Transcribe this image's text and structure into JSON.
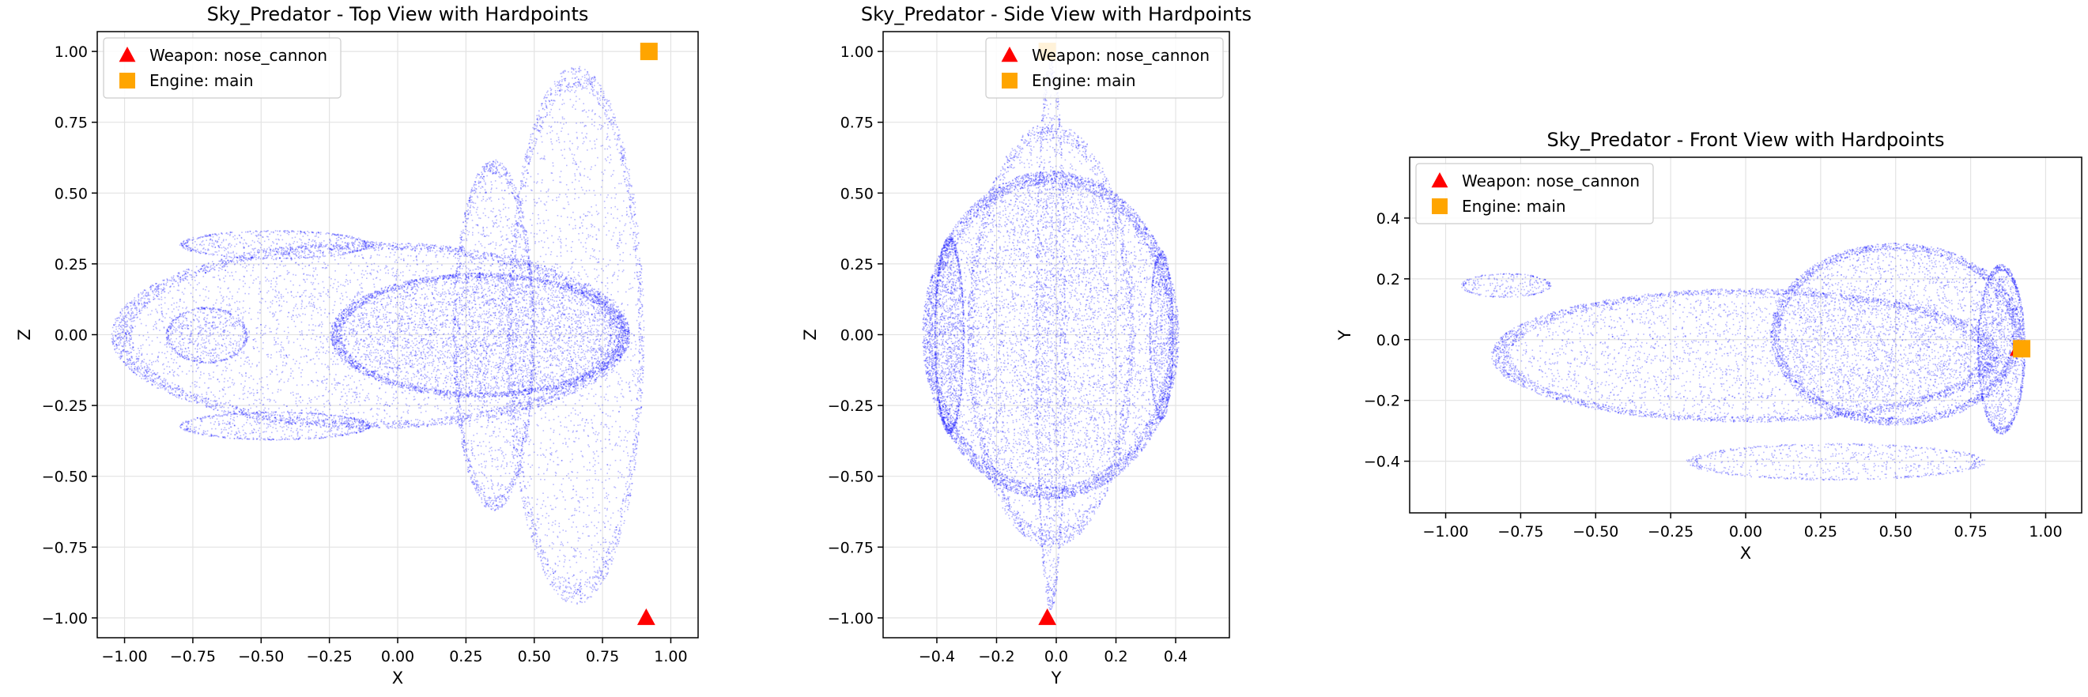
{
  "colors": {
    "points": "#0000ff",
    "weapon": "#ff0000",
    "engine": "#ffa500"
  },
  "chart_data": [
    {
      "type": "scatter",
      "title": "Sky_Predator - Top View with Hardpoints",
      "xlabel": "X",
      "ylabel": "Z",
      "xlim": [
        -1.1,
        1.1
      ],
      "ylim": [
        -1.07,
        1.07
      ],
      "xticks": [
        -1.0,
        -0.75,
        -0.5,
        -0.25,
        0.0,
        0.25,
        0.5,
        0.75,
        1.0
      ],
      "xtick_labels": [
        "−1.00",
        "−0.75",
        "−0.50",
        "−0.25",
        "0.00",
        "0.25",
        "0.50",
        "0.75",
        "1.00"
      ],
      "yticks": [
        -1.0,
        -0.75,
        -0.5,
        -0.25,
        0.0,
        0.25,
        0.5,
        0.75,
        1.0
      ],
      "ytick_labels": [
        "−1.00",
        "−0.75",
        "−0.50",
        "−0.25",
        "0.00",
        "0.25",
        "0.50",
        "0.75",
        "1.00"
      ],
      "grid": true,
      "legend": "upper-left",
      "hardpoints": [
        {
          "name": "Weapon: nose_cannon",
          "marker": "triangle",
          "x": 0.91,
          "y": -1.0
        },
        {
          "name": "Engine: main",
          "marker": "square",
          "x": 0.92,
          "y": 1.0
        }
      ],
      "point_cloud": [
        {
          "shape": "ellipse",
          "cx": -0.1,
          "cy": 0.0,
          "rx": 0.95,
          "ry": 0.33,
          "n": 6000
        },
        {
          "shape": "ellipse",
          "cx": 0.3,
          "cy": 0.0,
          "rx": 0.55,
          "ry": 0.22,
          "n": 4500
        },
        {
          "shape": "ellipse",
          "cx": 0.65,
          "cy": 0.0,
          "rx": 0.25,
          "ry": 0.95,
          "n": 3000
        },
        {
          "shape": "ellipse",
          "cx": 0.35,
          "cy": 0.0,
          "rx": 0.15,
          "ry": 0.62,
          "n": 2000
        },
        {
          "shape": "ellipse",
          "cx": -0.45,
          "cy": 0.32,
          "rx": 0.35,
          "ry": 0.05,
          "n": 700
        },
        {
          "shape": "ellipse",
          "cx": -0.45,
          "cy": -0.32,
          "rx": 0.35,
          "ry": 0.05,
          "n": 700
        },
        {
          "shape": "ellipse",
          "cx": -0.7,
          "cy": 0.0,
          "rx": 0.15,
          "ry": 0.1,
          "n": 600
        }
      ]
    },
    {
      "type": "scatter",
      "title": "Sky_Predator - Side View with Hardpoints",
      "xlabel": "Y",
      "ylabel": "Z",
      "xlim": [
        -0.58,
        0.58
      ],
      "ylim": [
        -1.07,
        1.07
      ],
      "xticks": [
        -0.4,
        -0.2,
        0.0,
        0.2,
        0.4
      ],
      "xtick_labels": [
        "−0.4",
        "−0.2",
        "0.0",
        "0.2",
        "0.4"
      ],
      "yticks": [
        -1.0,
        -0.75,
        -0.5,
        -0.25,
        0.0,
        0.25,
        0.5,
        0.75,
        1.0
      ],
      "ytick_labels": [
        "−1.00",
        "−0.75",
        "−0.50",
        "−0.25",
        "0.00",
        "0.25",
        "0.50",
        "0.75",
        "1.00"
      ],
      "grid": true,
      "legend": "upper-right",
      "hardpoints": [
        {
          "name": "Weapon: nose_cannon",
          "marker": "triangle",
          "x": -0.03,
          "y": -1.0
        },
        {
          "name": "Engine: main",
          "marker": "square",
          "x": -0.03,
          "y": 1.0
        }
      ],
      "point_cloud": [
        {
          "shape": "ellipse",
          "cx": -0.02,
          "cy": 0.0,
          "rx": 0.43,
          "ry": 0.58,
          "n": 8000
        },
        {
          "shape": "ellipse",
          "cx": -0.02,
          "cy": 0.0,
          "rx": 0.28,
          "ry": 0.75,
          "n": 3000
        },
        {
          "shape": "ellipse",
          "cx": -0.02,
          "cy": 0.0,
          "rx": 0.05,
          "ry": 0.97,
          "n": 1200
        },
        {
          "shape": "ellipse",
          "cx": -0.36,
          "cy": 0.0,
          "rx": 0.05,
          "ry": 0.35,
          "n": 1500
        },
        {
          "shape": "ellipse",
          "cx": 0.35,
          "cy": 0.0,
          "rx": 0.04,
          "ry": 0.3,
          "n": 800
        }
      ]
    },
    {
      "type": "scatter",
      "title": "Sky_Predator - Front View with Hardpoints",
      "xlabel": "X",
      "ylabel": "Y",
      "xlim": [
        -1.12,
        1.12
      ],
      "ylim": [
        -0.57,
        0.6
      ],
      "xticks": [
        -1.0,
        -0.75,
        -0.5,
        -0.25,
        0.0,
        0.25,
        0.5,
        0.75,
        1.0
      ],
      "xtick_labels": [
        "−1.00",
        "−0.75",
        "−0.50",
        "−0.25",
        "0.00",
        "0.25",
        "0.50",
        "0.75",
        "1.00"
      ],
      "yticks": [
        -0.4,
        -0.2,
        0.0,
        0.2,
        0.4
      ],
      "ytick_labels": [
        "−0.4",
        "−0.2",
        "0.0",
        "0.2",
        "0.4"
      ],
      "grid": true,
      "legend": "upper-left",
      "hardpoints": [
        {
          "name": "Weapon: nose_cannon",
          "marker": "triangle",
          "x": 0.91,
          "y": -0.03
        },
        {
          "name": "Engine: main",
          "marker": "square",
          "x": 0.92,
          "y": -0.03
        }
      ],
      "point_cloud": [
        {
          "shape": "ellipse",
          "cx": 0.0,
          "cy": -0.05,
          "rx": 0.85,
          "ry": 0.22,
          "n": 5000
        },
        {
          "shape": "ellipse",
          "cx": 0.5,
          "cy": 0.02,
          "rx": 0.42,
          "ry": 0.3,
          "n": 4500
        },
        {
          "shape": "ellipse",
          "cx": 0.85,
          "cy": -0.03,
          "rx": 0.08,
          "ry": 0.28,
          "n": 1500
        },
        {
          "shape": "ellipse",
          "cx": 0.3,
          "cy": -0.4,
          "rx": 0.5,
          "ry": 0.06,
          "n": 800
        },
        {
          "shape": "ellipse",
          "cx": -0.8,
          "cy": 0.18,
          "rx": 0.15,
          "ry": 0.04,
          "n": 300
        }
      ]
    }
  ]
}
